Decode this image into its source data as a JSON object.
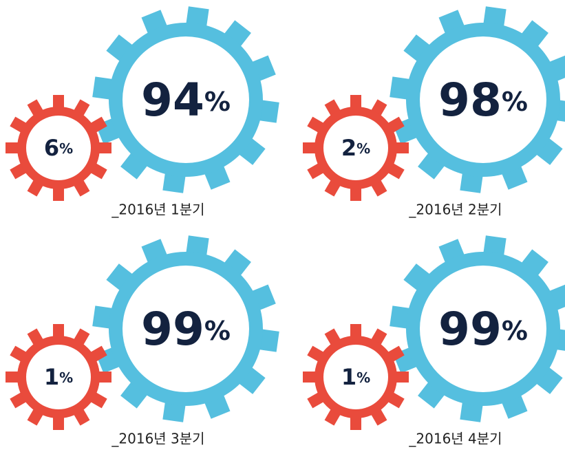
{
  "unit": "%",
  "panels": [
    {
      "label": "_2016년 1분기",
      "large": "94",
      "small": "6"
    },
    {
      "label": "_2016년 2분기",
      "large": "98",
      "small": "2"
    },
    {
      "label": "_2016년 3분기",
      "large": "99",
      "small": "1"
    },
    {
      "label": "_2016년 4분기",
      "large": "99",
      "small": "1"
    }
  ]
}
